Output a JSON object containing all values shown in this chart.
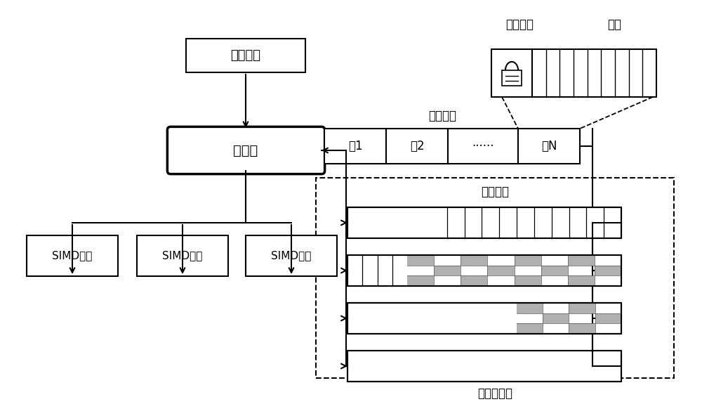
{
  "bg_color": "#ffffff",
  "text_color": "#000000",
  "line_color": "#000000",
  "title_lock": "锁定标志",
  "title_thread": "线程",
  "label_pool": "线程组池",
  "label_scheduler": "调度器",
  "label_slot_title": "线程组槽",
  "label_slot1": "槽1",
  "label_slot2": "槽2",
  "label_slot_dots": "······",
  "label_slotN": "槽N",
  "label_regroup_queue": "重组队列",
  "label_regroup_buffer": "重组缓冲区",
  "label_simd1": "SIMD阵列",
  "label_simd2": "SIMD阵列",
  "label_simd3": "SIMD阵列",
  "fig_w": 10.0,
  "fig_h": 5.92,
  "dpi": 100
}
